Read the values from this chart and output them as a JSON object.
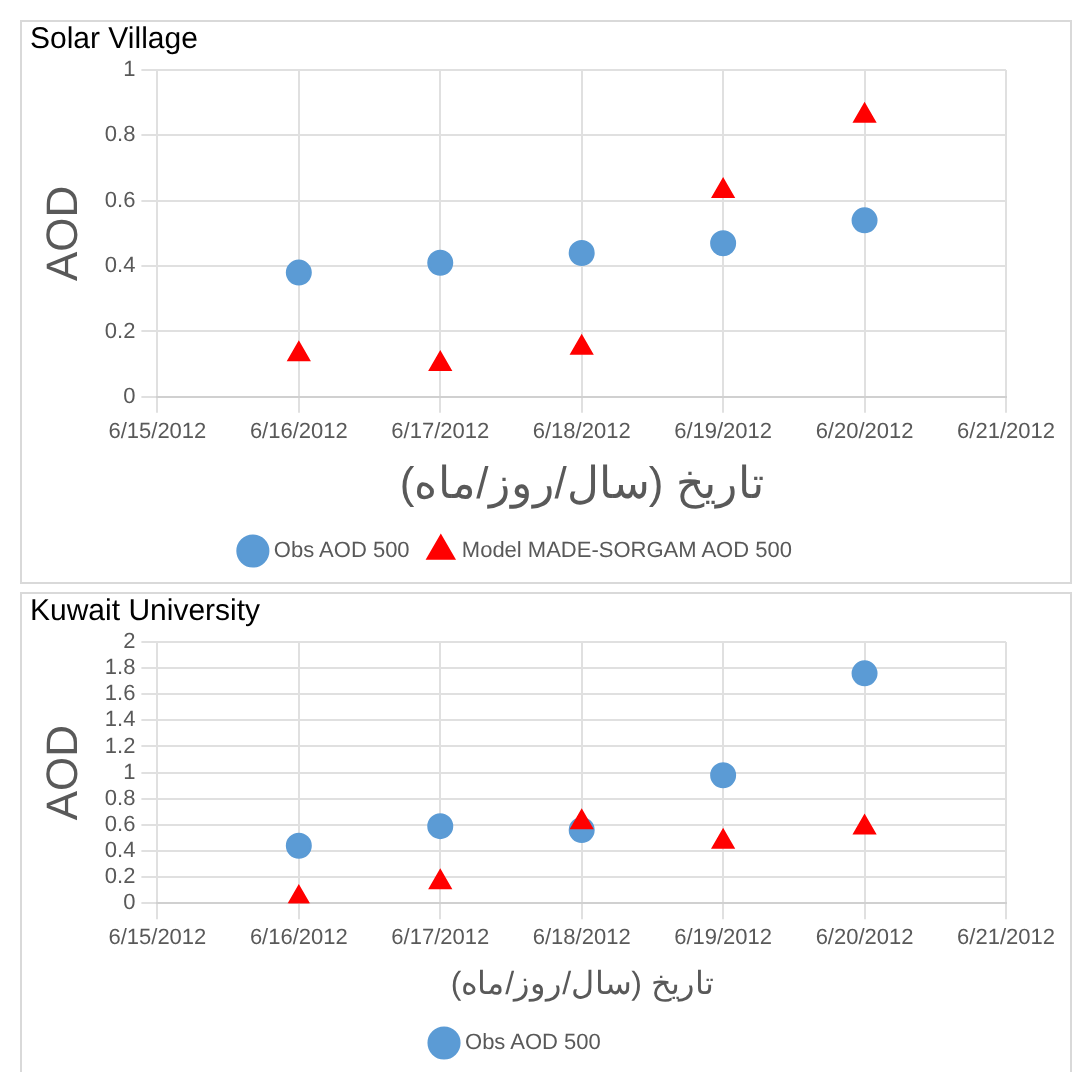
{
  "chart_data": [
    {
      "type": "scatter",
      "title": "Solar Village",
      "xlabel": "تاریخ (سال/روز/ماه)",
      "ylabel": "AOD",
      "x": [
        "2012-06-16",
        "2012-06-17",
        "2012-06-18",
        "2012-06-19",
        "2012-06-20"
      ],
      "series": [
        {
          "name": "Obs AOD 500",
          "color": "#5b9bd5",
          "marker": "circle",
          "values": [
            0.38,
            0.41,
            0.44,
            0.47,
            0.54
          ]
        },
        {
          "name": "Model MADE-SORGAM AOD 500",
          "color": "#ff0000",
          "marker": "triangle",
          "values": [
            0.13,
            0.1,
            0.15,
            0.63,
            0.86
          ]
        }
      ],
      "xlim": [
        "2012-06-15",
        "2012-06-21"
      ],
      "xticks": [
        {
          "value": "2012-06-15",
          "label": "6/15/2012"
        },
        {
          "value": "2012-06-16",
          "label": "6/16/2012"
        },
        {
          "value": "2012-06-17",
          "label": "6/17/2012"
        },
        {
          "value": "2012-06-18",
          "label": "6/18/2012"
        },
        {
          "value": "2012-06-19",
          "label": "6/19/2012"
        },
        {
          "value": "2012-06-20",
          "label": "6/20/2012"
        },
        {
          "value": "2012-06-21",
          "label": "6/21/2012"
        }
      ],
      "ylim": [
        0,
        1
      ],
      "yticks": [
        0,
        0.2,
        0.4,
        0.6,
        0.8,
        1
      ],
      "grid": true,
      "legend": "bottom"
    },
    {
      "type": "scatter",
      "title": "Kuwait University",
      "xlabel": "تاریخ (سال/روز/ماه)",
      "ylabel": "AOD",
      "x": [
        "2012-06-16",
        "2012-06-17",
        "2012-06-18",
        "2012-06-19",
        "2012-06-20"
      ],
      "series": [
        {
          "name": "Obs AOD 500",
          "color": "#5b9bd5",
          "marker": "circle",
          "values": [
            0.44,
            0.59,
            0.56,
            0.98,
            1.76
          ]
        },
        {
          "color": "#ff0000",
          "marker": "triangle",
          "values": [
            0.04,
            0.16,
            0.62,
            0.47,
            0.58
          ]
        }
      ],
      "xlim": [
        "2012-06-15",
        "2012-06-21"
      ],
      "xticks": [
        {
          "value": "2012-06-15",
          "label": "6/15/2012"
        },
        {
          "value": "2012-06-16",
          "label": "6/16/2012"
        },
        {
          "value": "2012-06-17",
          "label": "6/17/2012"
        },
        {
          "value": "2012-06-18",
          "label": "6/18/2012"
        },
        {
          "value": "2012-06-19",
          "label": "6/19/2012"
        },
        {
          "value": "2012-06-20",
          "label": "6/20/2012"
        },
        {
          "value": "2012-06-21",
          "label": "6/21/2012"
        }
      ],
      "ylim": [
        0,
        2
      ],
      "yticks": [
        0,
        0.2,
        0.4,
        0.6,
        0.8,
        1,
        1.2,
        1.4,
        1.6,
        1.8,
        2
      ],
      "grid": true,
      "legend": "bottom"
    }
  ]
}
